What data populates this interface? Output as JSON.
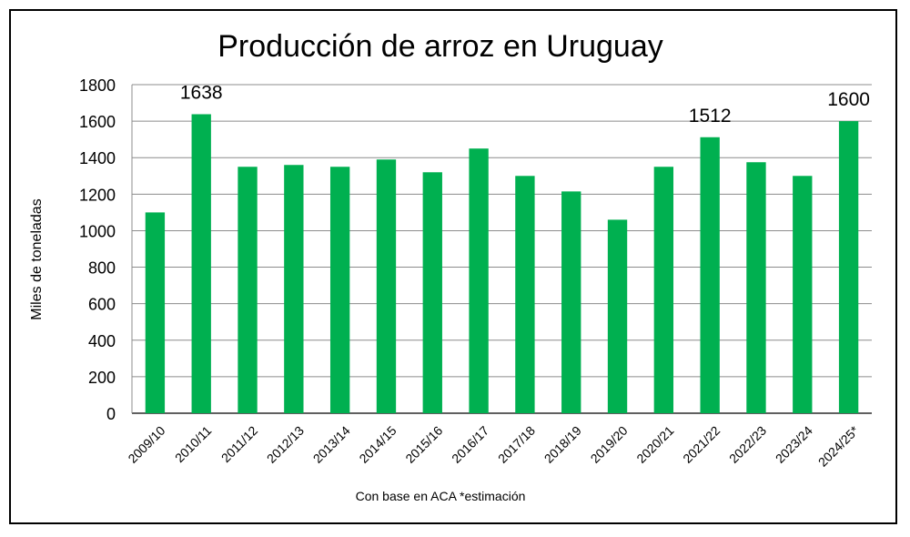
{
  "chart_data": {
    "type": "bar",
    "title": "Producción de arroz en Uruguay",
    "xlabel": "",
    "ylabel": "Miles de toneladas",
    "note": "Con base en ACA *estimación",
    "categories": [
      "2009/10",
      "2010/11",
      "2011/12",
      "2012/13",
      "2013/14",
      "2014/15",
      "2015/16",
      "2016/17",
      "2017/18",
      "2018/19",
      "2019/20",
      "2020/21",
      "2021/22",
      "2022/23",
      "2023/24",
      "2024/25*"
    ],
    "values": [
      1100,
      1638,
      1350,
      1360,
      1350,
      1390,
      1320,
      1450,
      1300,
      1215,
      1060,
      1350,
      1512,
      1375,
      1300,
      1600
    ],
    "data_labels": [
      {
        "index": 1,
        "text": "1638"
      },
      {
        "index": 12,
        "text": "1512"
      },
      {
        "index": 15,
        "text": "1600"
      }
    ],
    "ylim": [
      0,
      1800
    ],
    "yticks": [
      0,
      200,
      400,
      600,
      800,
      1000,
      1200,
      1400,
      1600,
      1800
    ],
    "grid": true,
    "legend": "none",
    "bar_color": "#00B050"
  }
}
